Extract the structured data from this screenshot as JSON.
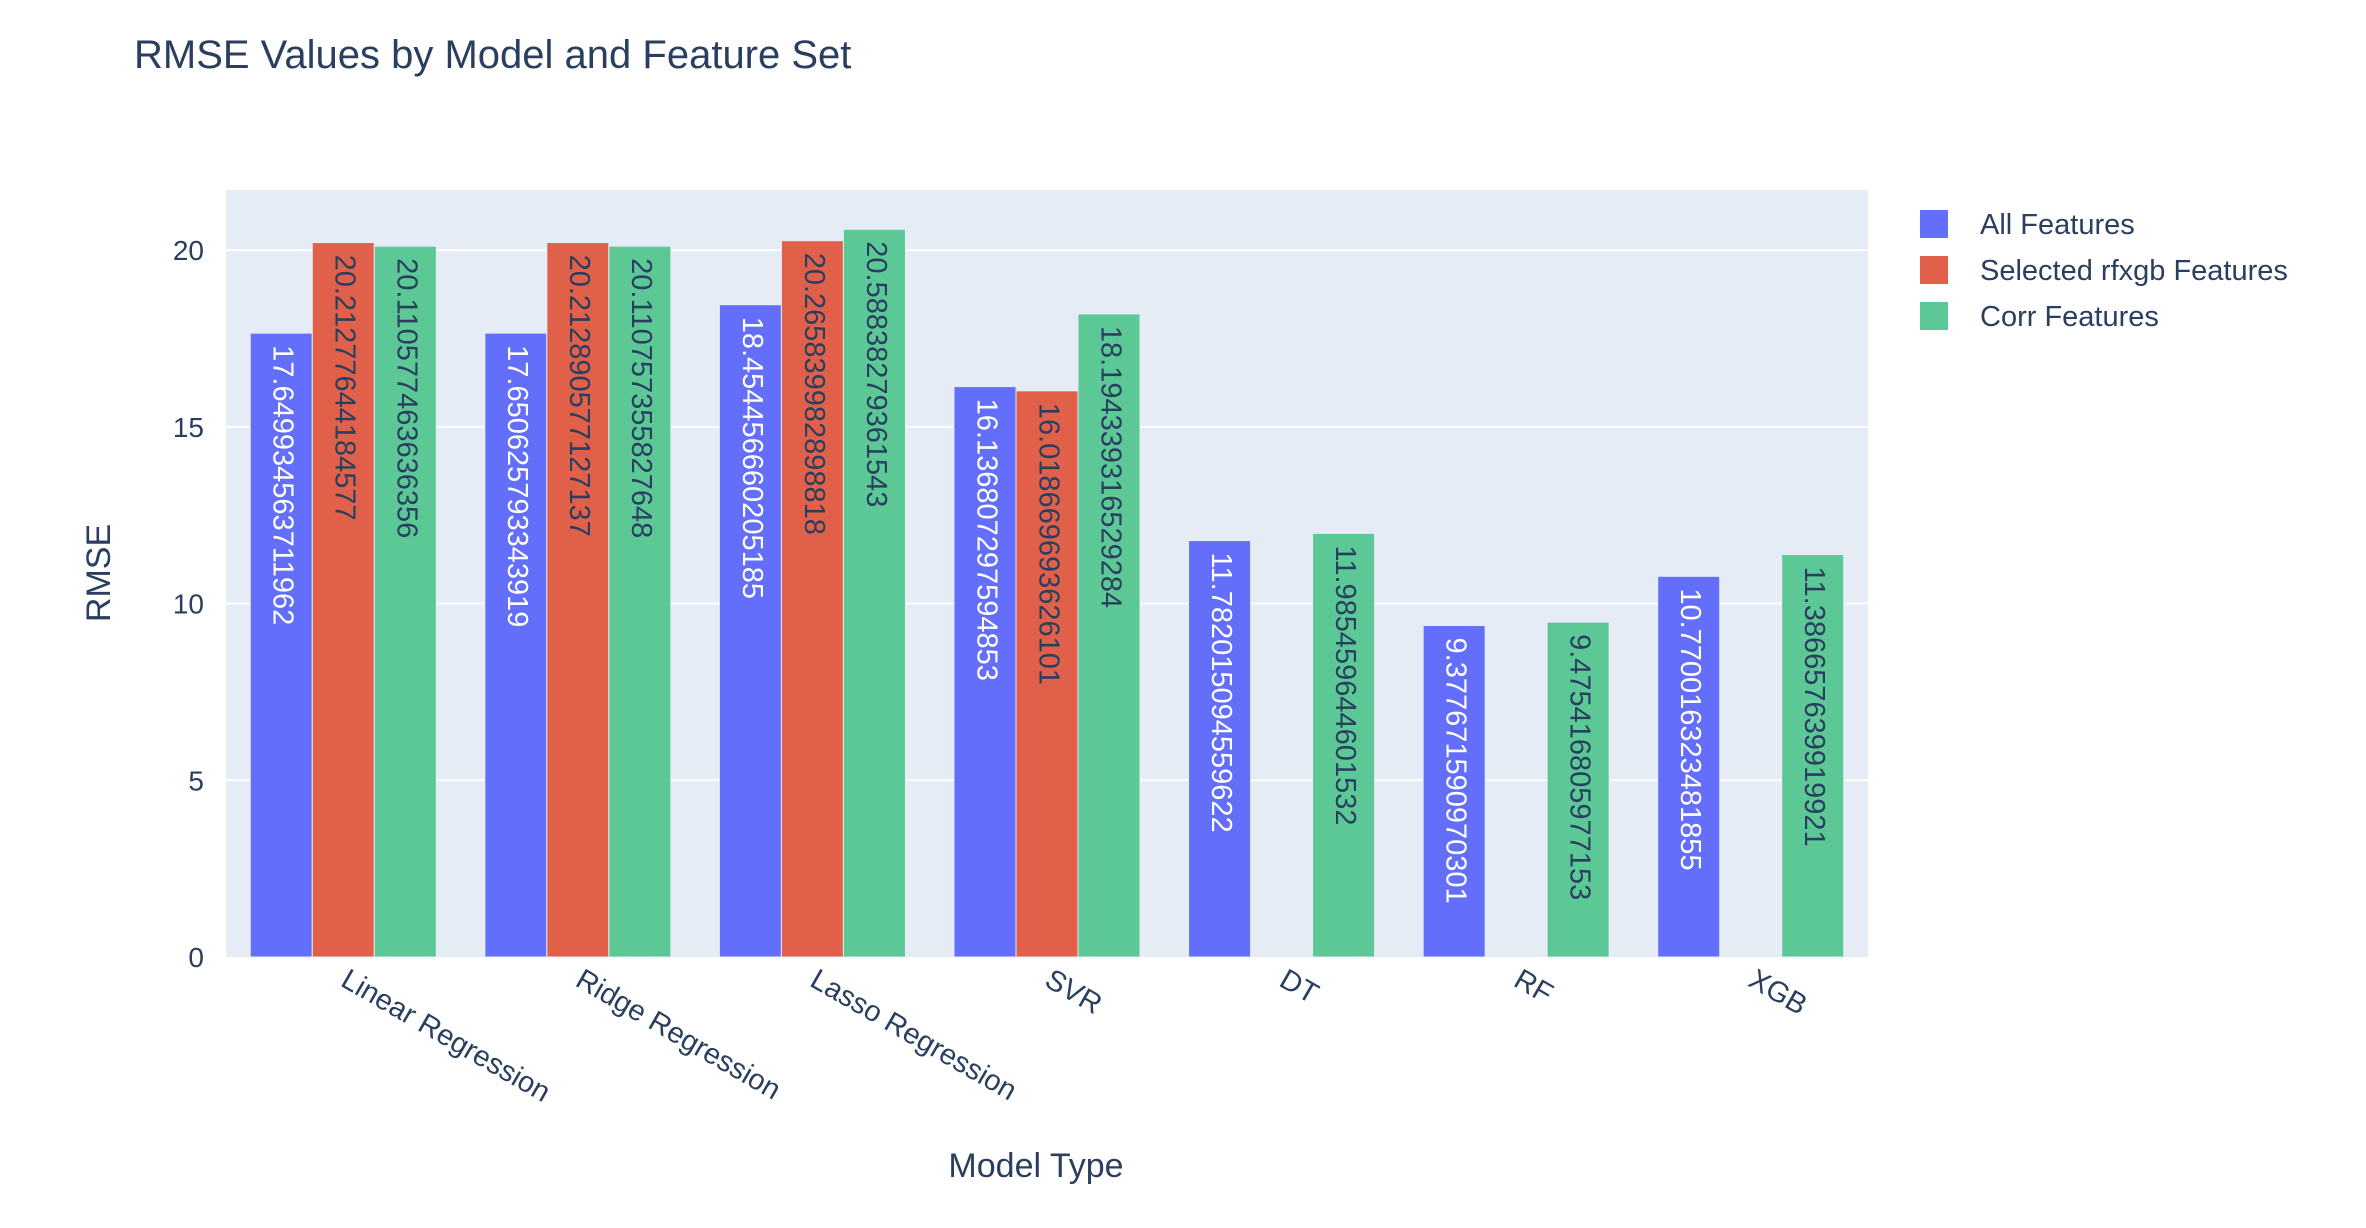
{
  "chart_data": {
    "type": "bar",
    "title": "RMSE Values by Model and Feature Set",
    "xlabel": "Model Type",
    "ylabel": "RMSE",
    "ylim": [
      0,
      21.7
    ],
    "yticks": [
      0,
      5,
      10,
      15,
      20
    ],
    "grid": true,
    "legend_position": "top-right",
    "categories": [
      "Linear Regression",
      "Ridge Regression",
      "Lasso Regression",
      "SVR",
      "DT",
      "RF",
      "XGB"
    ],
    "series": [
      {
        "name": "All Features",
        "color": "#636efa",
        "label_color": "#ffffff",
        "values": [
          17.649934563711962,
          17.65062579334392,
          18.454456660205185,
          16.136807297594853,
          11.782015094559622,
          9.377671590970301,
          10.770016323481855
        ],
        "labels": [
          "17.649934563711962",
          "17.650625793343919",
          "18.454456660205185",
          "16.136807297594853",
          "11.782015094559622",
          "9.377671590970301",
          "10.770016323481855"
        ]
      },
      {
        "name": "Selected rfxgb Features",
        "color": "#e0604a",
        "label_color": "#2a3f5f",
        "values": [
          20.21277644184577,
          20.212890577127137,
          20.265839982898818,
          16.0186696936261,
          null,
          null,
          null
        ],
        "labels": [
          "20.21277644184577",
          "20.212890577127137",
          "20.265839982898818",
          "16.018669693626101",
          "",
          "",
          ""
        ]
      },
      {
        "name": "Corr Features",
        "color": "#5bc896",
        "label_color": "#2a3f5f",
        "values": [
          20.110577463636357,
          20.110757355827648,
          20.58838279361543,
          18.194339316529284,
          11.985459644601532,
          9.475416805977153,
          11.386657639919921
        ],
        "labels": [
          "20.110577463636356",
          "20.110757355827648",
          "20.58838279361543",
          "18.194339316529284",
          "11.985459644601532",
          "9.475416805977153",
          "11.386657639919921"
        ]
      }
    ]
  }
}
